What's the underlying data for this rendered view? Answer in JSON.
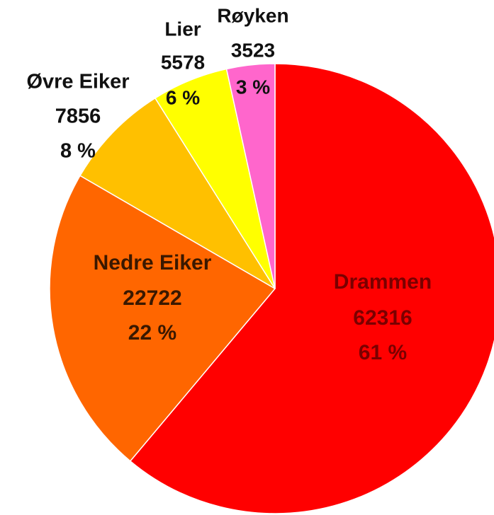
{
  "chart_data": {
    "type": "pie",
    "categories": [
      "Drammen",
      "Nedre Eiker",
      "Øvre Eiker",
      "Lier",
      "Røyken"
    ],
    "values": [
      62316,
      22722,
      7856,
      5578,
      3523
    ],
    "percent_labels": [
      "61 %",
      "22 %",
      "8 %",
      "6 %",
      "3 %"
    ],
    "colors": [
      "#ff0000",
      "#ff6600",
      "#ffc000",
      "#ffff00",
      "#ff66cc"
    ]
  }
}
